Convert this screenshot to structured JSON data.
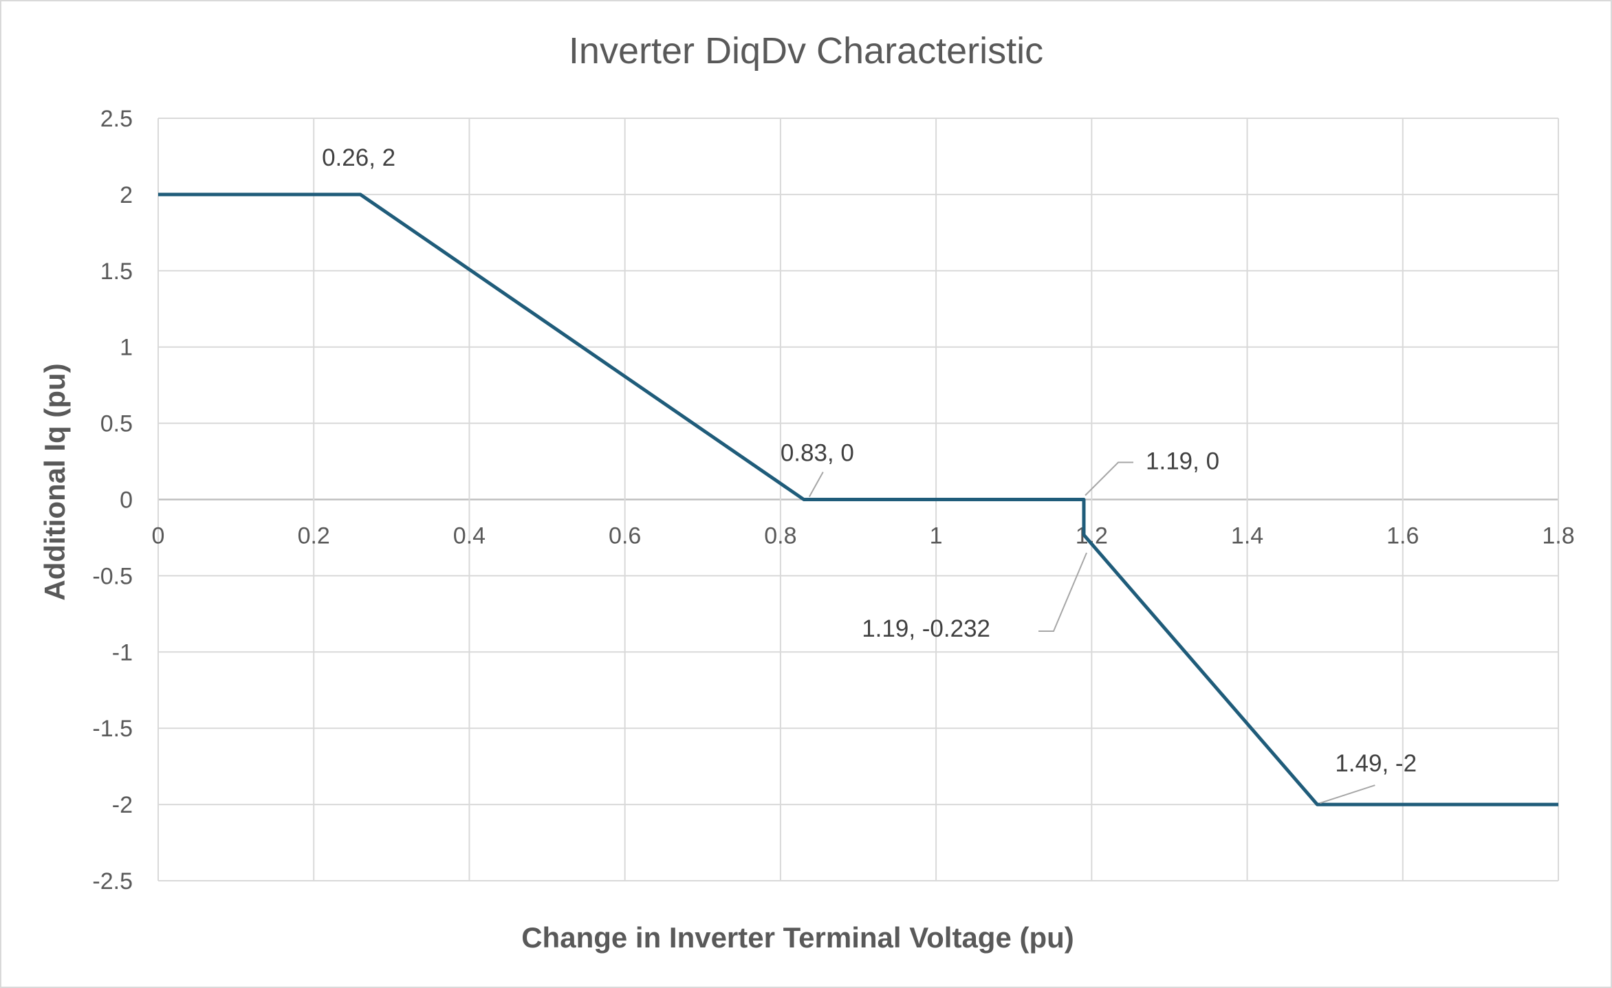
{
  "chart_data": {
    "type": "line",
    "title": "Inverter DiqDv Characteristic",
    "xlabel": "Change in Inverter Terminal Voltage (pu)",
    "ylabel": "Additional Iq (pu)",
    "xlim": [
      0,
      1.8
    ],
    "ylim": [
      -2.5,
      2.5
    ],
    "x_ticks": [
      "0",
      "0.2",
      "0.4",
      "0.6",
      "0.8",
      "1",
      "1.2",
      "1.4",
      "1.6",
      "1.8"
    ],
    "y_ticks": [
      "2.5",
      "2",
      "1.5",
      "1",
      "0.5",
      "0",
      "-0.5",
      "-1",
      "-1.5",
      "-2",
      "-2.5"
    ],
    "grid": true,
    "legend": "none",
    "series_color": "#1f5c7a",
    "series": [
      {
        "x": [
          0,
          0.26,
          0.83,
          1.19,
          1.19,
          1.49,
          1.8
        ],
        "y": [
          2,
          2,
          0,
          0,
          -0.232,
          -2,
          -2
        ]
      }
    ],
    "annotations": [
      {
        "text": "0.26, 2",
        "x": 0.26,
        "y": 2
      },
      {
        "text": "0.83, 0",
        "x": 0.83,
        "y": 0
      },
      {
        "text": "1.19, 0",
        "x": 1.19,
        "y": 0
      },
      {
        "text": "1.19, -0.232",
        "x": 1.19,
        "y": -0.232
      },
      {
        "text": "1.49, -2",
        "x": 1.49,
        "y": -2
      }
    ]
  }
}
